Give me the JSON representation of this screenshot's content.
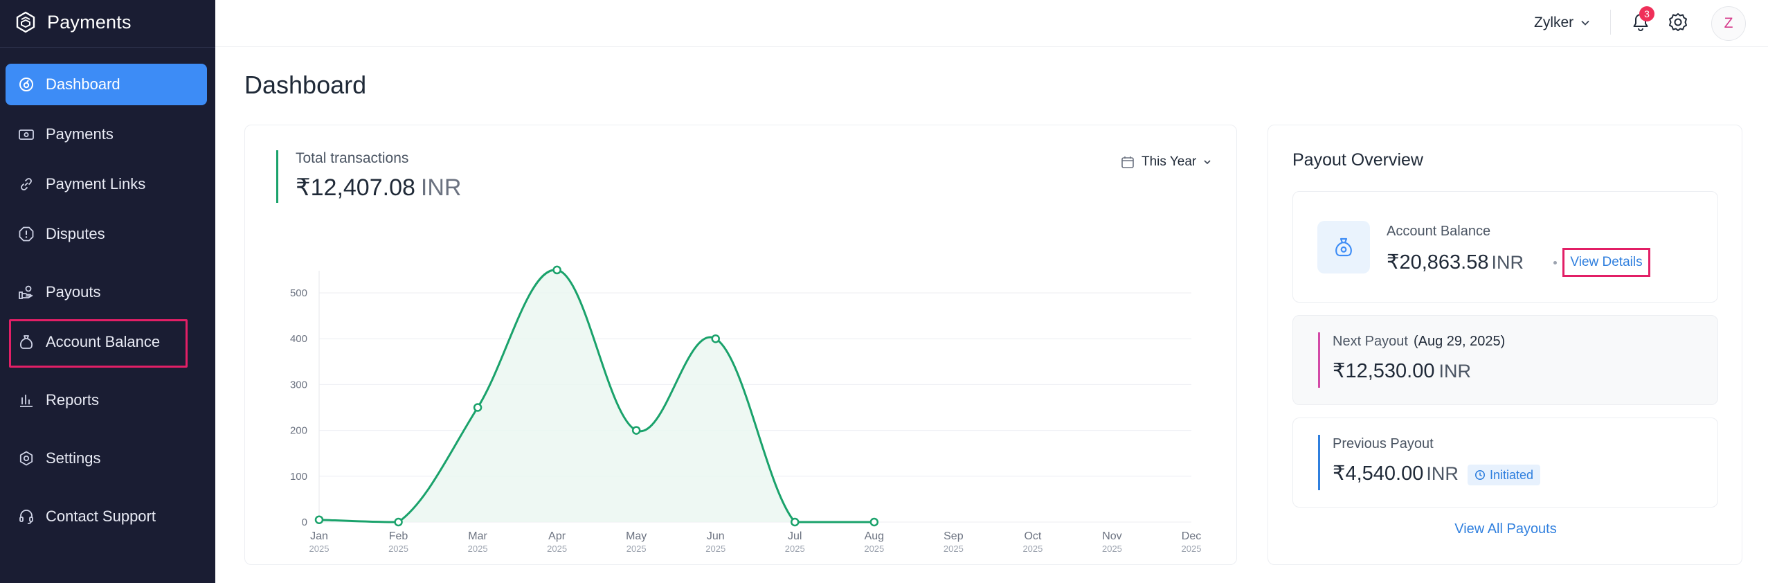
{
  "app": {
    "name": "Payments"
  },
  "sidebar": {
    "items": [
      {
        "label": "Dashboard",
        "icon": "dashboard-icon",
        "active": true
      },
      {
        "label": "Payments",
        "icon": "payments-icon"
      },
      {
        "label": "Payment Links",
        "icon": "link-icon"
      },
      {
        "label": "Disputes",
        "icon": "dispute-icon"
      },
      {
        "label": "Payouts",
        "icon": "payouts-icon"
      },
      {
        "label": "Account Balance",
        "icon": "money-bag-icon",
        "highlighted": true
      },
      {
        "label": "Reports",
        "icon": "reports-icon"
      },
      {
        "label": "Settings",
        "icon": "settings-icon"
      },
      {
        "label": "Contact Support",
        "icon": "headset-icon"
      }
    ]
  },
  "header": {
    "org": "Zylker",
    "notifications_count": "3",
    "avatar_initial": "Z"
  },
  "page": {
    "title": "Dashboard"
  },
  "transactions": {
    "label": "Total transactions",
    "amount": "₹12,407.08",
    "currency": "INR",
    "range": "This Year"
  },
  "chart_data": {
    "type": "area",
    "categories": [
      "Jan",
      "Feb",
      "Mar",
      "Apr",
      "May",
      "Jun",
      "Jul",
      "Aug",
      "Sep",
      "Oct",
      "Nov",
      "Dec"
    ],
    "year_label": "2025",
    "values": [
      5,
      0,
      250,
      550,
      200,
      400,
      0,
      0,
      null,
      null,
      null,
      null
    ],
    "ylim": [
      0,
      500
    ],
    "yticks": [
      0,
      100,
      200,
      300,
      400,
      500
    ],
    "grid": true,
    "colors": {
      "line": "#1aa26b",
      "fill": "#eaf6f0"
    }
  },
  "payout_overview": {
    "title": "Payout Overview",
    "account_balance": {
      "label": "Account Balance",
      "amount": "₹20,863.58",
      "currency": "INR",
      "link": "View Details"
    },
    "next_payout": {
      "label": "Next Payout",
      "date": "(Aug 29, 2025)",
      "amount": "₹12,530.00",
      "currency": "INR"
    },
    "previous_payout": {
      "label": "Previous Payout",
      "amount": "₹4,540.00",
      "currency": "INR",
      "status": "Initiated"
    },
    "view_all": "View All Payouts"
  }
}
